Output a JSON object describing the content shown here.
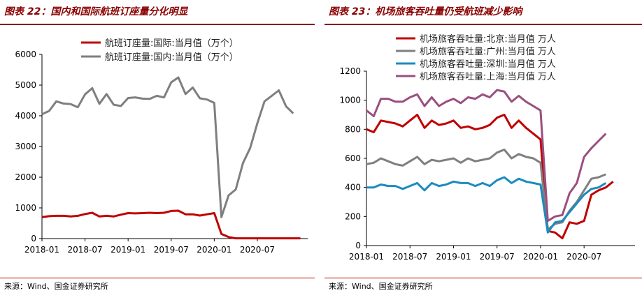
{
  "left_panel": {
    "title": "图表 22：国内和国际航班订座量分化明显",
    "source": "来源：Wind、国金证券研究所"
  },
  "right_panel": {
    "title": "图表 23：机场旅客吞吐量仍受航班减少影响",
    "source": "来源：Wind、国金证券研究所"
  },
  "colors": {
    "dark_red": "#c00000",
    "gray": "#7f7f7f",
    "blue": "#1b8bbf",
    "purple": "#9b4f7f",
    "title": "#8b0000"
  },
  "chart_data": [
    {
      "type": "line",
      "title": "图表 22：国内和国际航班订座量分化明显",
      "x_tick_labels": [
        "2018-01",
        "2018-07",
        "2019-01",
        "2019-07",
        "2020-01",
        "2020-07"
      ],
      "ylim": [
        0,
        6000
      ],
      "y_ticks": [
        0,
        1000,
        2000,
        3000,
        4000,
        5000,
        6000
      ],
      "legend_position": "top-center",
      "grid": false,
      "series": [
        {
          "name": "航班订座量:国际:当月值（万个）",
          "color": "#c00000",
          "values": [
            700,
            730,
            740,
            740,
            720,
            740,
            800,
            840,
            720,
            740,
            720,
            780,
            830,
            820,
            830,
            840,
            830,
            840,
            900,
            910,
            790,
            790,
            750,
            790,
            830,
            150,
            50,
            10,
            10,
            10,
            10,
            10,
            10,
            10,
            10,
            10,
            10
          ]
        },
        {
          "name": "航班订座量:国内:当月值（万个）",
          "color": "#7f7f7f",
          "values": [
            4050,
            4160,
            4470,
            4400,
            4380,
            4280,
            4700,
            4900,
            4390,
            4710,
            4360,
            4320,
            4580,
            4600,
            4560,
            4550,
            4650,
            4600,
            5090,
            5250,
            4710,
            4920,
            4570,
            4530,
            4420,
            700,
            1410,
            1600,
            2460,
            2950,
            3750,
            4470,
            4650,
            4830,
            4310,
            4080
          ]
        }
      ]
    },
    {
      "type": "line",
      "title": "图表 23：机场旅客吞吐量仍受航班减少影响",
      "x_tick_labels": [
        "2018-01",
        "2018-07",
        "2019-01",
        "2019-07",
        "2020-01",
        "2020-07"
      ],
      "ylim": [
        0,
        1200
      ],
      "y_ticks": [
        0,
        200,
        400,
        600,
        800,
        1000,
        1200
      ],
      "legend_position": "top-left",
      "grid": false,
      "series": [
        {
          "name": "机场旅客吞吐量:北京:当月值 万人",
          "color": "#c00000",
          "values": [
            800,
            780,
            860,
            850,
            840,
            820,
            860,
            900,
            810,
            860,
            830,
            840,
            860,
            810,
            820,
            800,
            810,
            830,
            880,
            900,
            810,
            860,
            810,
            770,
            730,
            100,
            90,
            50,
            160,
            150,
            170,
            350,
            380,
            400,
            440
          ]
        },
        {
          "name": "机场旅客吞吐量:广州:当月值 万人",
          "color": "#7f7f7f",
          "values": [
            560,
            570,
            600,
            580,
            560,
            550,
            580,
            610,
            560,
            590,
            580,
            590,
            600,
            570,
            600,
            580,
            590,
            600,
            640,
            660,
            600,
            630,
            610,
            600,
            570,
            110,
            150,
            160,
            240,
            300,
            380,
            460,
            470,
            490
          ]
        },
        {
          "name": "机场旅客吞吐量:深圳:当月值 万人",
          "color": "#1b8bbf",
          "values": [
            400,
            400,
            420,
            410,
            410,
            390,
            410,
            430,
            380,
            430,
            410,
            420,
            440,
            430,
            430,
            410,
            430,
            410,
            450,
            470,
            430,
            460,
            440,
            430,
            420,
            90,
            160,
            170,
            230,
            290,
            350,
            390,
            400,
            430
          ]
        },
        {
          "name": "机场旅客吞吐量:上海:当月值 万人",
          "color": "#9b4f7f",
          "values": [
            930,
            890,
            1010,
            1010,
            990,
            990,
            1020,
            1040,
            960,
            1020,
            960,
            990,
            1010,
            980,
            1020,
            1010,
            1040,
            1020,
            1070,
            1060,
            990,
            1030,
            990,
            960,
            930,
            170,
            200,
            210,
            360,
            430,
            610,
            670,
            720,
            770
          ]
        }
      ]
    }
  ]
}
